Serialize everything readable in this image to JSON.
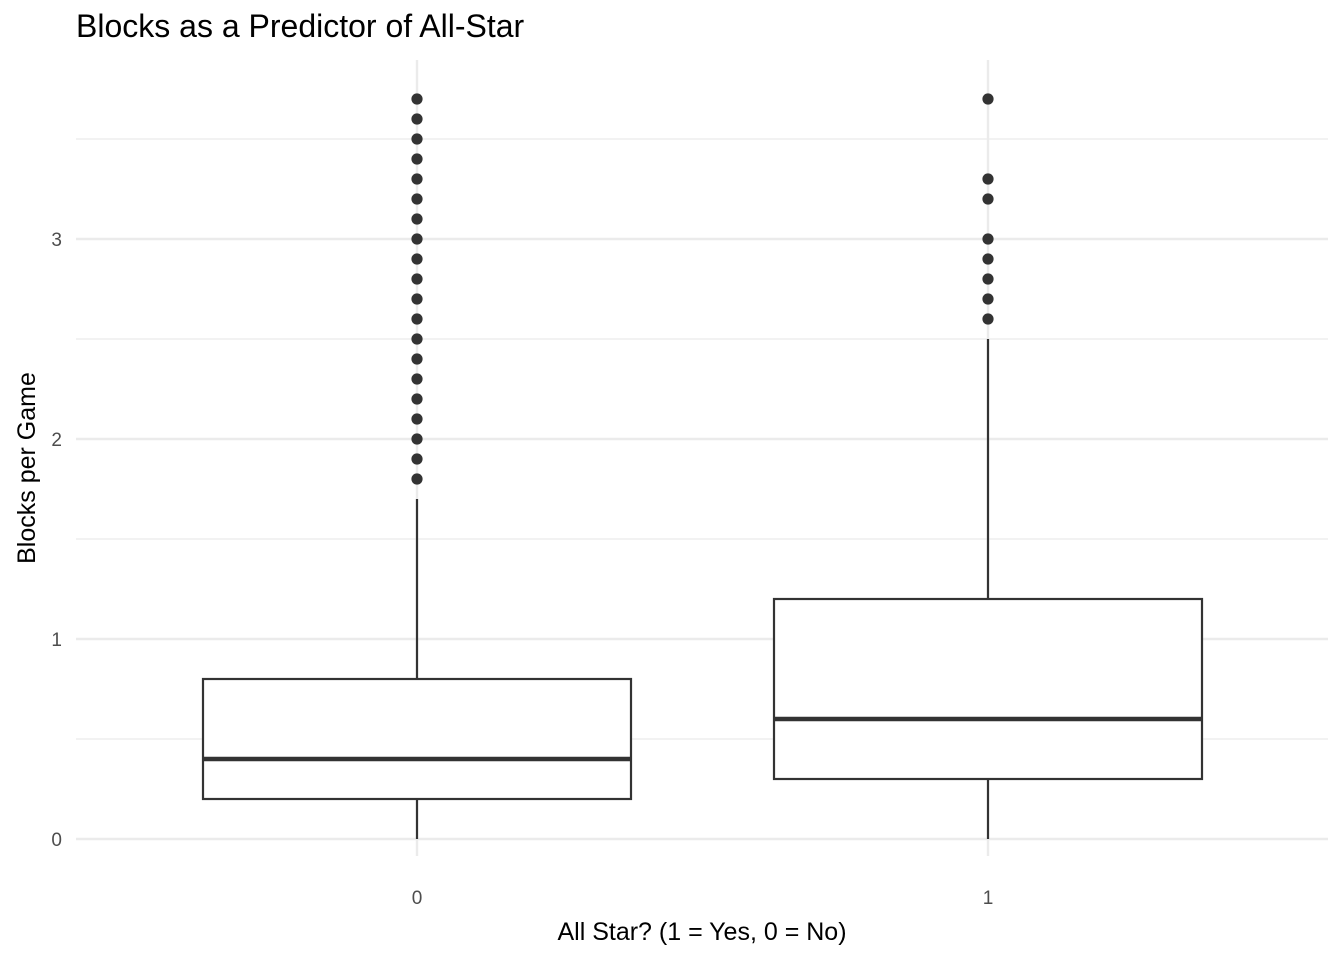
{
  "chart_data": {
    "type": "boxplot",
    "title": "Blocks as a Predictor of All-Star",
    "xlabel": "All Star? (1 = Yes, 0 = No)",
    "ylabel": "Blocks per Game",
    "categories": [
      "0",
      "1"
    ],
    "yticks": [
      "0",
      "1",
      "2",
      "3"
    ],
    "ylim": [
      -0.1,
      3.9
    ],
    "grid": true,
    "legend": "none",
    "boxes": [
      {
        "category": "0",
        "whisker_low": 0,
        "q1": 0.2,
        "median": 0.4,
        "q3": 0.8,
        "whisker_high": 1.7,
        "outliers": [
          1.8,
          1.9,
          2.0,
          2.1,
          2.2,
          2.3,
          2.4,
          2.5,
          2.6,
          2.7,
          2.8,
          2.9,
          3.0,
          3.1,
          3.2,
          3.3,
          3.4,
          3.5,
          3.6,
          3.7
        ]
      },
      {
        "category": "1",
        "whisker_low": 0,
        "q1": 0.3,
        "median": 0.6,
        "q3": 1.2,
        "whisker_high": 2.5,
        "outliers": [
          2.6,
          2.7,
          2.8,
          2.9,
          3.0,
          3.2,
          3.3,
          3.7
        ]
      }
    ],
    "colors": {
      "box": "#333333",
      "grid": "#ebebeb",
      "point": "#333333",
      "fill": "#ffffff"
    }
  }
}
